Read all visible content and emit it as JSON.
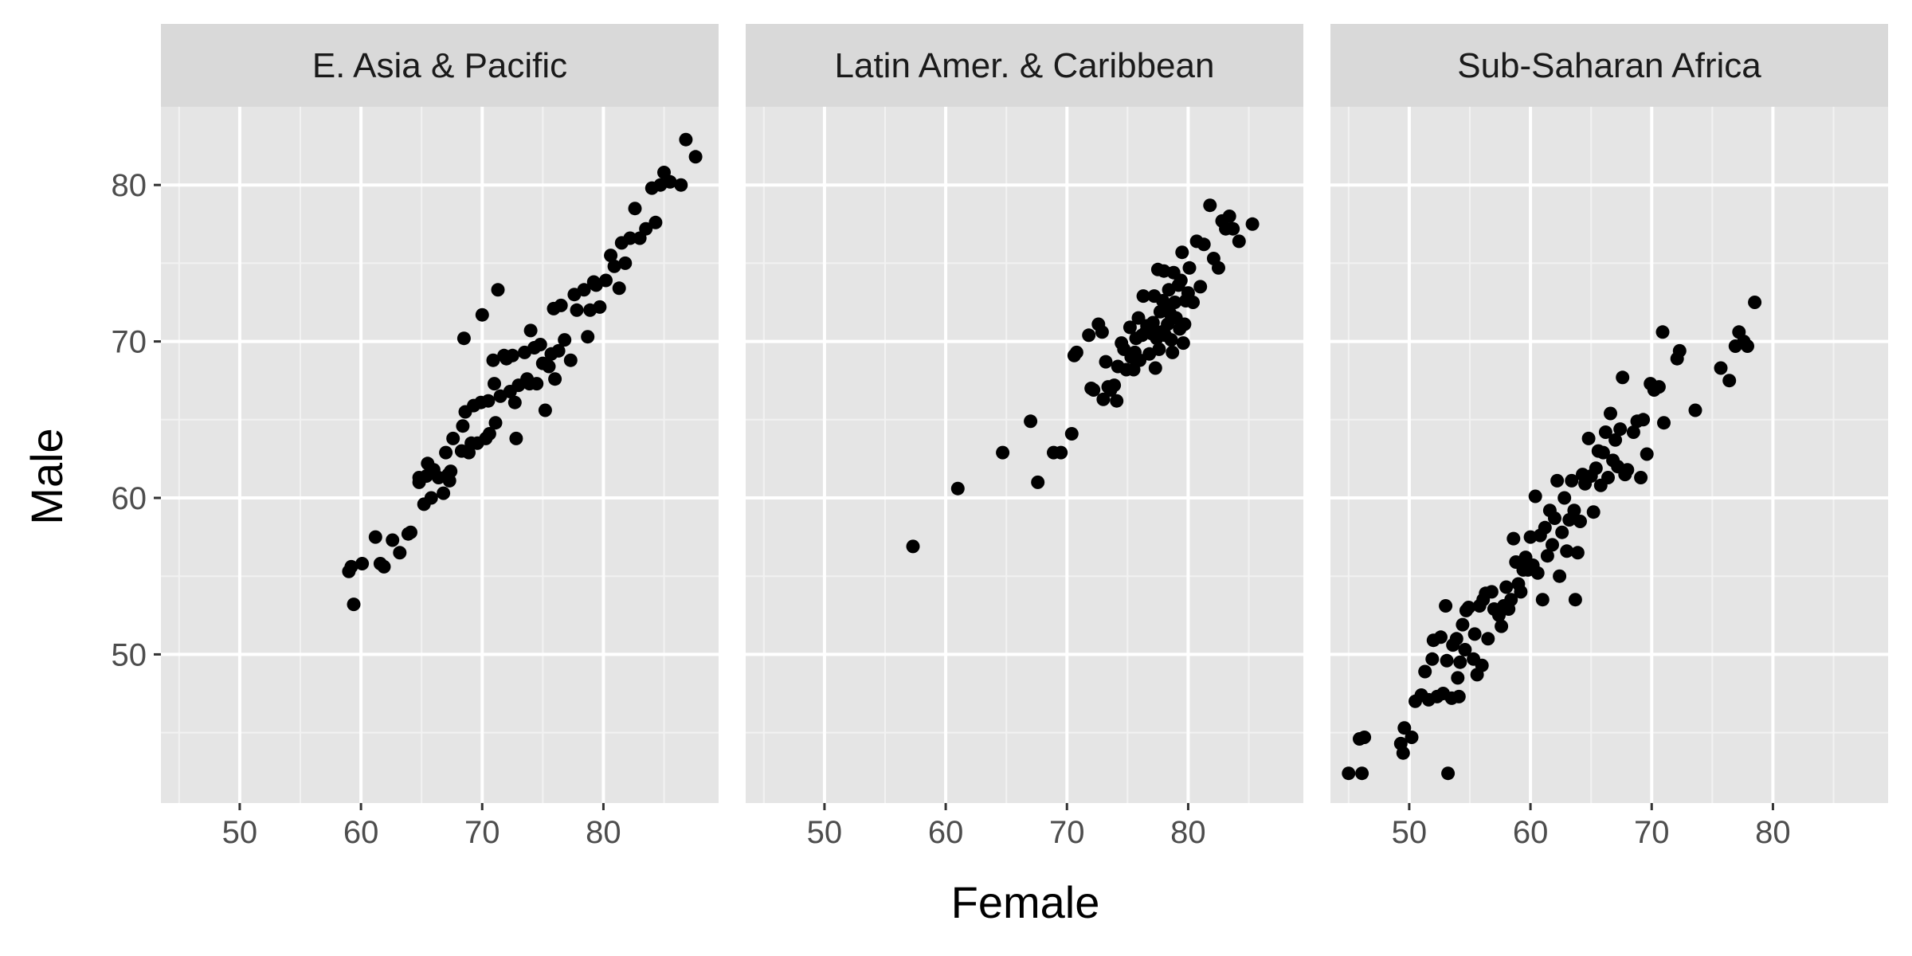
{
  "chart_data": {
    "type": "scatter",
    "xlabel": "Female",
    "ylabel": "Male",
    "xlim": [
      43.5,
      89.5
    ],
    "ylim": [
      40.5,
      85
    ],
    "x_ticks": [
      50,
      60,
      70,
      80
    ],
    "y_ticks": [
      50,
      60,
      70,
      80
    ],
    "grid": true,
    "point_color": "#000000",
    "panel_background": "#e5e5e5",
    "strip_background": "#d9d9d9",
    "panels": [
      {
        "title": "E. Asia & Pacific",
        "points": [
          [
            59.0,
            55.3
          ],
          [
            59.2,
            55.6
          ],
          [
            59.4,
            53.2
          ],
          [
            60.1,
            55.8
          ],
          [
            61.2,
            57.5
          ],
          [
            61.6,
            55.8
          ],
          [
            61.9,
            55.6
          ],
          [
            62.6,
            57.3
          ],
          [
            63.2,
            56.5
          ],
          [
            63.9,
            57.7
          ],
          [
            64.1,
            57.8
          ],
          [
            64.8,
            61.0
          ],
          [
            64.8,
            61.3
          ],
          [
            65.2,
            59.6
          ],
          [
            65.4,
            61.4
          ],
          [
            65.5,
            62.2
          ],
          [
            65.8,
            60.0
          ],
          [
            66.0,
            61.8
          ],
          [
            66.4,
            61.3
          ],
          [
            66.8,
            60.3
          ],
          [
            67.0,
            62.9
          ],
          [
            67.2,
            61.5
          ],
          [
            67.3,
            61.1
          ],
          [
            67.4,
            61.7
          ],
          [
            67.6,
            63.8
          ],
          [
            68.3,
            63.0
          ],
          [
            68.4,
            64.6
          ],
          [
            68.6,
            65.5
          ],
          [
            68.5,
            70.2
          ],
          [
            68.9,
            62.9
          ],
          [
            69.1,
            63.5
          ],
          [
            69.3,
            65.9
          ],
          [
            69.6,
            63.5
          ],
          [
            69.9,
            66.1
          ],
          [
            70.0,
            71.7
          ],
          [
            70.3,
            63.8
          ],
          [
            70.5,
            66.2
          ],
          [
            70.6,
            64.1
          ],
          [
            70.9,
            68.8
          ],
          [
            71.0,
            67.3
          ],
          [
            71.1,
            64.8
          ],
          [
            71.3,
            73.3
          ],
          [
            71.5,
            66.5
          ],
          [
            71.8,
            69.1
          ],
          [
            72.0,
            68.9
          ],
          [
            72.3,
            66.8
          ],
          [
            72.5,
            69.1
          ],
          [
            72.7,
            66.1
          ],
          [
            72.8,
            63.8
          ],
          [
            73.0,
            67.2
          ],
          [
            73.5,
            69.3
          ],
          [
            73.7,
            67.6
          ],
          [
            73.9,
            67.3
          ],
          [
            74.0,
            70.7
          ],
          [
            74.3,
            69.6
          ],
          [
            74.5,
            67.3
          ],
          [
            74.8,
            69.8
          ],
          [
            75.0,
            68.6
          ],
          [
            75.2,
            65.6
          ],
          [
            75.5,
            68.4
          ],
          [
            75.7,
            69.2
          ],
          [
            75.9,
            72.1
          ],
          [
            76.0,
            67.6
          ],
          [
            76.3,
            69.4
          ],
          [
            76.5,
            72.3
          ],
          [
            76.8,
            70.1
          ],
          [
            77.3,
            68.8
          ],
          [
            77.6,
            73.0
          ],
          [
            77.8,
            72.0
          ],
          [
            78.4,
            73.3
          ],
          [
            78.7,
            70.3
          ],
          [
            78.9,
            72.0
          ],
          [
            79.2,
            73.8
          ],
          [
            79.4,
            73.6
          ],
          [
            79.7,
            72.2
          ],
          [
            80.2,
            73.9
          ],
          [
            80.6,
            75.5
          ],
          [
            80.9,
            74.8
          ],
          [
            81.3,
            73.4
          ],
          [
            81.5,
            76.3
          ],
          [
            81.8,
            75.0
          ],
          [
            82.2,
            76.6
          ],
          [
            82.6,
            78.5
          ],
          [
            83.0,
            76.6
          ],
          [
            83.5,
            77.2
          ],
          [
            84.0,
            79.8
          ],
          [
            84.3,
            77.6
          ],
          [
            84.7,
            80.0
          ],
          [
            85.0,
            80.8
          ],
          [
            85.5,
            80.2
          ],
          [
            86.4,
            80.0
          ],
          [
            86.8,
            82.9
          ],
          [
            87.6,
            81.8
          ]
        ]
      },
      {
        "title": "Latin Amer. & Caribbean",
        "points": [
          [
            57.3,
            56.9
          ],
          [
            61.0,
            60.6
          ],
          [
            64.7,
            62.9
          ],
          [
            67.0,
            64.9
          ],
          [
            67.6,
            61.0
          ],
          [
            68.9,
            62.9
          ],
          [
            69.5,
            62.9
          ],
          [
            70.4,
            64.1
          ],
          [
            70.6,
            69.1
          ],
          [
            70.8,
            69.3
          ],
          [
            71.8,
            70.4
          ],
          [
            72.0,
            67.0
          ],
          [
            72.2,
            66.9
          ],
          [
            72.6,
            71.1
          ],
          [
            72.9,
            70.6
          ],
          [
            73.0,
            66.3
          ],
          [
            73.2,
            68.7
          ],
          [
            73.4,
            67.1
          ],
          [
            73.6,
            66.9
          ],
          [
            73.9,
            67.2
          ],
          [
            74.1,
            66.2
          ],
          [
            74.2,
            68.4
          ],
          [
            74.5,
            69.9
          ],
          [
            74.7,
            69.5
          ],
          [
            74.9,
            68.2
          ],
          [
            75.2,
            70.9
          ],
          [
            75.3,
            69.0
          ],
          [
            75.5,
            68.2
          ],
          [
            75.6,
            69.3
          ],
          [
            75.7,
            70.2
          ],
          [
            75.9,
            71.5
          ],
          [
            76.0,
            68.8
          ],
          [
            76.2,
            70.4
          ],
          [
            76.3,
            72.9
          ],
          [
            76.5,
            70.6
          ],
          [
            76.6,
            71.0
          ],
          [
            76.8,
            69.2
          ],
          [
            77.0,
            70.5
          ],
          [
            77.1,
            71.2
          ],
          [
            77.2,
            72.9
          ],
          [
            77.3,
            68.3
          ],
          [
            77.4,
            70.2
          ],
          [
            77.5,
            74.6
          ],
          [
            77.6,
            69.5
          ],
          [
            77.7,
            71.9
          ],
          [
            77.8,
            70.6
          ],
          [
            77.9,
            72.6
          ],
          [
            78.0,
            74.5
          ],
          [
            78.1,
            70.4
          ],
          [
            78.2,
            72.2
          ],
          [
            78.3,
            71.1
          ],
          [
            78.4,
            73.3
          ],
          [
            78.5,
            71.8
          ],
          [
            78.6,
            70.1
          ],
          [
            78.7,
            69.3
          ],
          [
            78.8,
            74.4
          ],
          [
            78.9,
            72.5
          ],
          [
            79.0,
            71.5
          ],
          [
            79.2,
            73.6
          ],
          [
            79.3,
            70.8
          ],
          [
            79.4,
            73.9
          ],
          [
            79.5,
            75.7
          ],
          [
            79.6,
            69.9
          ],
          [
            79.7,
            71.1
          ],
          [
            79.8,
            72.6
          ],
          [
            80.0,
            73.1
          ],
          [
            80.1,
            74.7
          ],
          [
            80.4,
            72.5
          ],
          [
            80.7,
            76.4
          ],
          [
            81.0,
            73.5
          ],
          [
            81.3,
            76.2
          ],
          [
            81.8,
            78.7
          ],
          [
            82.1,
            75.3
          ],
          [
            82.5,
            74.7
          ],
          [
            82.8,
            77.7
          ],
          [
            83.1,
            77.2
          ],
          [
            83.4,
            78.0
          ],
          [
            83.7,
            77.2
          ],
          [
            84.2,
            76.4
          ],
          [
            85.3,
            77.5
          ]
        ]
      },
      {
        "title": "Sub-Saharan Africa",
        "points": [
          [
            45.0,
            42.4
          ],
          [
            45.9,
            44.6
          ],
          [
            46.1,
            42.4
          ],
          [
            46.3,
            44.7
          ],
          [
            49.3,
            44.3
          ],
          [
            49.5,
            43.7
          ],
          [
            49.6,
            45.3
          ],
          [
            50.2,
            44.7
          ],
          [
            50.5,
            47.0
          ],
          [
            51.0,
            47.4
          ],
          [
            51.3,
            48.9
          ],
          [
            51.6,
            47.1
          ],
          [
            51.9,
            49.7
          ],
          [
            52.0,
            50.9
          ],
          [
            52.3,
            47.3
          ],
          [
            52.6,
            51.1
          ],
          [
            52.8,
            47.5
          ],
          [
            53.0,
            53.1
          ],
          [
            53.1,
            49.6
          ],
          [
            53.2,
            42.4
          ],
          [
            53.5,
            47.2
          ],
          [
            53.6,
            50.6
          ],
          [
            53.9,
            51.0
          ],
          [
            54.0,
            48.5
          ],
          [
            54.1,
            47.3
          ],
          [
            54.2,
            49.5
          ],
          [
            54.4,
            51.9
          ],
          [
            54.6,
            50.3
          ],
          [
            54.7,
            52.8
          ],
          [
            54.9,
            53.0
          ],
          [
            55.3,
            49.7
          ],
          [
            55.4,
            51.3
          ],
          [
            55.6,
            48.7
          ],
          [
            55.8,
            53.1
          ],
          [
            56.0,
            49.3
          ],
          [
            56.1,
            53.5
          ],
          [
            56.3,
            53.9
          ],
          [
            56.5,
            51.0
          ],
          [
            56.8,
            54.0
          ],
          [
            57.0,
            52.9
          ],
          [
            57.4,
            52.5
          ],
          [
            57.6,
            51.8
          ],
          [
            57.8,
            53.1
          ],
          [
            58.0,
            54.3
          ],
          [
            58.2,
            52.9
          ],
          [
            58.4,
            53.5
          ],
          [
            58.6,
            57.4
          ],
          [
            58.8,
            55.9
          ],
          [
            59.0,
            54.5
          ],
          [
            59.2,
            54.0
          ],
          [
            59.4,
            55.4
          ],
          [
            59.6,
            56.2
          ],
          [
            59.8,
            55.4
          ],
          [
            60.0,
            57.5
          ],
          [
            60.2,
            55.7
          ],
          [
            60.4,
            60.1
          ],
          [
            60.6,
            55.2
          ],
          [
            60.8,
            57.6
          ],
          [
            61.0,
            53.5
          ],
          [
            61.2,
            58.1
          ],
          [
            61.4,
            56.3
          ],
          [
            61.6,
            59.2
          ],
          [
            61.8,
            57.0
          ],
          [
            62.0,
            58.7
          ],
          [
            62.2,
            61.1
          ],
          [
            62.4,
            55.0
          ],
          [
            62.6,
            57.8
          ],
          [
            62.8,
            60.0
          ],
          [
            63.0,
            56.6
          ],
          [
            63.2,
            58.6
          ],
          [
            63.4,
            61.1
          ],
          [
            63.6,
            59.2
          ],
          [
            63.7,
            53.5
          ],
          [
            63.9,
            56.5
          ],
          [
            64.1,
            58.5
          ],
          [
            64.3,
            61.5
          ],
          [
            64.5,
            60.9
          ],
          [
            64.8,
            63.8
          ],
          [
            65.0,
            61.4
          ],
          [
            65.2,
            59.1
          ],
          [
            65.4,
            61.9
          ],
          [
            65.6,
            63.0
          ],
          [
            65.8,
            60.8
          ],
          [
            66.0,
            62.9
          ],
          [
            66.2,
            64.2
          ],
          [
            66.4,
            61.3
          ],
          [
            66.6,
            65.4
          ],
          [
            66.8,
            62.4
          ],
          [
            67.0,
            63.7
          ],
          [
            67.2,
            62.0
          ],
          [
            67.4,
            64.4
          ],
          [
            67.6,
            67.7
          ],
          [
            67.8,
            61.5
          ],
          [
            68.0,
            61.8
          ],
          [
            68.5,
            64.2
          ],
          [
            68.8,
            64.9
          ],
          [
            69.1,
            61.3
          ],
          [
            69.3,
            65.0
          ],
          [
            69.6,
            62.8
          ],
          [
            69.9,
            67.3
          ],
          [
            70.2,
            66.9
          ],
          [
            70.6,
            67.1
          ],
          [
            70.9,
            70.6
          ],
          [
            71.0,
            64.8
          ],
          [
            72.1,
            68.9
          ],
          [
            72.3,
            69.4
          ],
          [
            73.6,
            65.6
          ],
          [
            75.7,
            68.3
          ],
          [
            76.4,
            67.5
          ],
          [
            76.9,
            69.7
          ],
          [
            77.2,
            70.6
          ],
          [
            77.6,
            70.0
          ],
          [
            77.9,
            69.7
          ],
          [
            78.5,
            72.5
          ]
        ]
      }
    ]
  }
}
